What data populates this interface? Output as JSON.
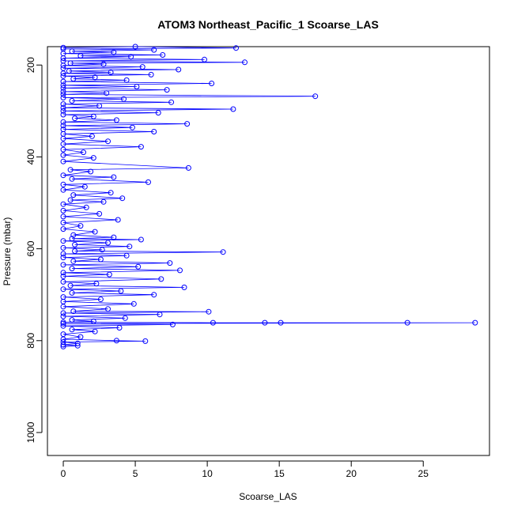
{
  "chart_data": {
    "type": "scatter",
    "title": "ATOM3 Northeast_Pacific_1 Scoarse_LAS",
    "xlabel": "Scoarse_LAS",
    "ylabel": "Pressure (mbar)",
    "xlim": [
      -1.1,
      29.6
    ],
    "ylim": [
      1050,
      160
    ],
    "y_reversed": true,
    "x_ticks": [
      0,
      5,
      10,
      15,
      20,
      25
    ],
    "y_ticks": [
      200,
      400,
      600,
      800,
      1000
    ],
    "grid": false,
    "legend": "none",
    "color": "#0000ff",
    "style": "points connected by lines",
    "series": [
      {
        "points": [
          [
            0,
            162
          ],
          [
            5.0,
            160
          ],
          [
            12.0,
            163
          ],
          [
            0,
            165
          ],
          [
            6.3,
            167
          ],
          [
            0.6,
            170
          ],
          [
            3.5,
            172
          ],
          [
            0,
            175
          ],
          [
            6.9,
            178
          ],
          [
            1.2,
            180
          ],
          [
            4.7,
            182
          ],
          [
            0,
            185
          ],
          [
            9.8,
            188
          ],
          [
            0,
            191
          ],
          [
            12.6,
            194
          ],
          [
            0.5,
            196
          ],
          [
            2.8,
            198
          ],
          [
            0,
            201
          ],
          [
            5.5,
            204
          ],
          [
            0,
            207
          ],
          [
            8.0,
            210
          ],
          [
            0.4,
            213
          ],
          [
            3.3,
            216
          ],
          [
            0,
            218
          ],
          [
            6.1,
            221
          ],
          [
            0,
            224
          ],
          [
            2.2,
            227
          ],
          [
            0.7,
            230
          ],
          [
            4.4,
            233
          ],
          [
            0,
            236
          ],
          [
            10.3,
            240
          ],
          [
            0,
            244
          ],
          [
            5.1,
            247
          ],
          [
            0,
            250
          ],
          [
            7.2,
            254
          ],
          [
            0,
            258
          ],
          [
            3.0,
            261
          ],
          [
            0,
            264
          ],
          [
            17.5,
            268
          ],
          [
            0,
            271
          ],
          [
            4.2,
            274
          ],
          [
            0.6,
            278
          ],
          [
            7.5,
            281
          ],
          [
            0,
            285
          ],
          [
            2.5,
            289
          ],
          [
            0,
            293
          ],
          [
            11.8,
            296
          ],
          [
            0,
            300
          ],
          [
            6.6,
            304
          ],
          [
            0,
            308
          ],
          [
            2.1,
            312
          ],
          [
            0.8,
            316
          ],
          [
            3.7,
            320
          ],
          [
            0,
            324
          ],
          [
            8.6,
            328
          ],
          [
            0,
            332
          ],
          [
            4.8,
            336
          ],
          [
            0,
            340
          ],
          [
            6.3,
            345
          ],
          [
            0,
            350
          ],
          [
            2.0,
            355
          ],
          [
            0,
            360
          ],
          [
            3.1,
            366
          ],
          [
            0,
            372
          ],
          [
            5.4,
            378
          ],
          [
            0,
            384
          ],
          [
            1.4,
            390
          ],
          [
            0,
            396
          ],
          [
            2.1,
            402
          ],
          [
            0,
            410
          ],
          [
            8.7,
            424
          ],
          [
            0.5,
            428
          ],
          [
            1.9,
            432
          ],
          [
            0,
            440
          ],
          [
            3.5,
            444
          ],
          [
            0.6,
            448
          ],
          [
            5.9,
            455
          ],
          [
            0,
            460
          ],
          [
            1.5,
            465
          ],
          [
            0,
            472
          ],
          [
            3.3,
            478
          ],
          [
            0.7,
            483
          ],
          [
            4.1,
            490
          ],
          [
            0.5,
            494
          ],
          [
            2.8,
            498
          ],
          [
            0,
            503
          ],
          [
            1.6,
            510
          ],
          [
            0,
            517
          ],
          [
            2.5,
            524
          ],
          [
            0,
            530
          ],
          [
            3.8,
            537
          ],
          [
            0,
            543
          ],
          [
            1.2,
            550
          ],
          [
            0,
            557
          ],
          [
            2.2,
            563
          ],
          [
            0.7,
            570
          ],
          [
            3.5,
            575
          ],
          [
            0.6,
            578
          ],
          [
            5.4,
            580
          ],
          [
            0,
            583
          ],
          [
            3.1,
            587
          ],
          [
            0.8,
            591
          ],
          [
            4.6,
            595
          ],
          [
            0,
            598
          ],
          [
            2.7,
            602
          ],
          [
            0.8,
            605
          ],
          [
            11.1,
            607
          ],
          [
            0,
            611
          ],
          [
            4.4,
            615
          ],
          [
            0,
            619
          ],
          [
            2.6,
            623
          ],
          [
            0.7,
            627
          ],
          [
            7.4,
            631
          ],
          [
            0,
            635
          ],
          [
            5.2,
            639
          ],
          [
            0.6,
            643
          ],
          [
            8.1,
            647
          ],
          [
            0,
            652
          ],
          [
            3.2,
            656
          ],
          [
            0,
            660
          ],
          [
            6.8,
            666
          ],
          [
            0,
            672
          ],
          [
            2.3,
            676
          ],
          [
            0.5,
            680
          ],
          [
            8.4,
            684
          ],
          [
            0,
            688
          ],
          [
            4.0,
            692
          ],
          [
            0.6,
            696
          ],
          [
            6.3,
            700
          ],
          [
            0,
            705
          ],
          [
            2.6,
            710
          ],
          [
            0,
            715
          ],
          [
            4.9,
            720
          ],
          [
            0,
            726
          ],
          [
            3.1,
            731
          ],
          [
            0.7,
            736
          ],
          [
            10.1,
            737
          ],
          [
            0,
            740
          ],
          [
            6.7,
            743
          ],
          [
            0,
            747
          ],
          [
            4.3,
            751
          ],
          [
            0.6,
            755
          ],
          [
            2.1,
            758
          ],
          [
            0,
            760
          ],
          [
            10.4,
            761
          ],
          [
            14.0,
            761
          ],
          [
            15.1,
            761
          ],
          [
            23.9,
            761
          ],
          [
            28.6,
            761
          ],
          [
            0,
            763
          ],
          [
            7.6,
            765
          ],
          [
            0,
            768
          ],
          [
            3.9,
            772
          ],
          [
            0.6,
            776
          ],
          [
            2.2,
            780
          ],
          [
            0,
            786
          ],
          [
            1.2,
            792
          ],
          [
            0,
            797
          ],
          [
            3.7,
            800
          ],
          [
            5.7,
            801
          ],
          [
            0,
            803
          ],
          [
            1.0,
            806
          ],
          [
            0,
            809
          ],
          [
            1.0,
            811
          ],
          [
            0,
            813
          ]
        ]
      }
    ]
  }
}
